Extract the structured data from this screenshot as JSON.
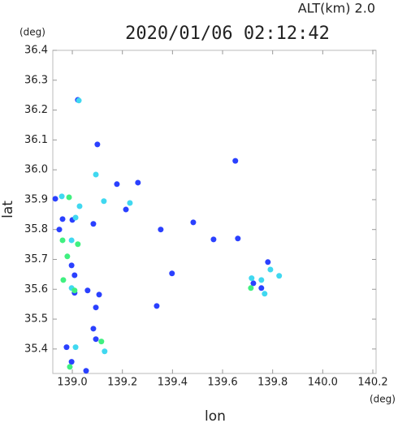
{
  "chart_data": {
    "type": "scatter",
    "title": "2020/01/06 02:12:42",
    "subtitle": "ALT(km) 2.0",
    "x_label": "lon",
    "y_label": "lat",
    "x_unit": "(deg)",
    "y_unit": "(deg)",
    "xlim": [
      138.922,
      140.213
    ],
    "ylim": [
      35.318,
      36.4
    ],
    "xticks": [
      {
        "value": 139.0,
        "label": "139.0"
      },
      139.2,
      139.4,
      139.6,
      139.8,
      {
        "value": 140.0,
        "label": "140.0"
      },
      140.2
    ],
    "yticks": [
      35.4,
      35.5,
      35.6,
      35.7,
      35.8,
      35.9,
      {
        "value": 36.0,
        "label": "36.0"
      },
      36.1,
      36.2,
      36.3,
      36.4
    ],
    "grid": false,
    "series": [
      {
        "color": "#2a40ff",
        "x": [
          139.022,
          139.1,
          138.932,
          139.0,
          139.084,
          138.948,
          138.997,
          139.009,
          139.061,
          139.107,
          139.094,
          139.084,
          139.094,
          138.977,
          138.997,
          139.055,
          139.214,
          139.262,
          139.353,
          139.398,
          139.483,
          139.564,
          139.661,
          139.337,
          139.723,
          139.755,
          139.781,
          139.178,
          139.651,
          138.961,
          139.009
        ],
        "y": [
          36.234,
          36.085,
          35.903,
          35.832,
          35.819,
          35.8,
          35.68,
          35.588,
          35.596,
          35.582,
          35.539,
          35.468,
          35.433,
          35.406,
          35.357,
          35.327,
          35.867,
          35.957,
          35.8,
          35.653,
          35.824,
          35.767,
          35.77,
          35.544,
          35.62,
          35.604,
          35.691,
          35.952,
          36.03,
          35.835,
          35.647
        ]
      },
      {
        "color": "#40d8f0",
        "x": [
          139.026,
          139.094,
          139.126,
          139.23,
          139.029,
          139.013,
          138.997,
          139.013,
          139.129,
          139.716,
          139.755,
          139.768,
          139.791,
          139.826,
          138.958,
          138.997
        ],
        "y": [
          36.232,
          35.984,
          35.895,
          35.889,
          35.878,
          35.84,
          35.604,
          35.406,
          35.392,
          35.637,
          35.631,
          35.585,
          35.666,
          35.645,
          35.911,
          35.764
        ]
      },
      {
        "color": "#40f080",
        "x": [
          138.987,
          138.961,
          139.022,
          138.98,
          139.009,
          138.99,
          139.116,
          139.713,
          138.964
        ],
        "y": [
          35.908,
          35.764,
          35.751,
          35.71,
          35.596,
          35.34,
          35.425,
          35.604,
          35.631
        ]
      }
    ]
  }
}
